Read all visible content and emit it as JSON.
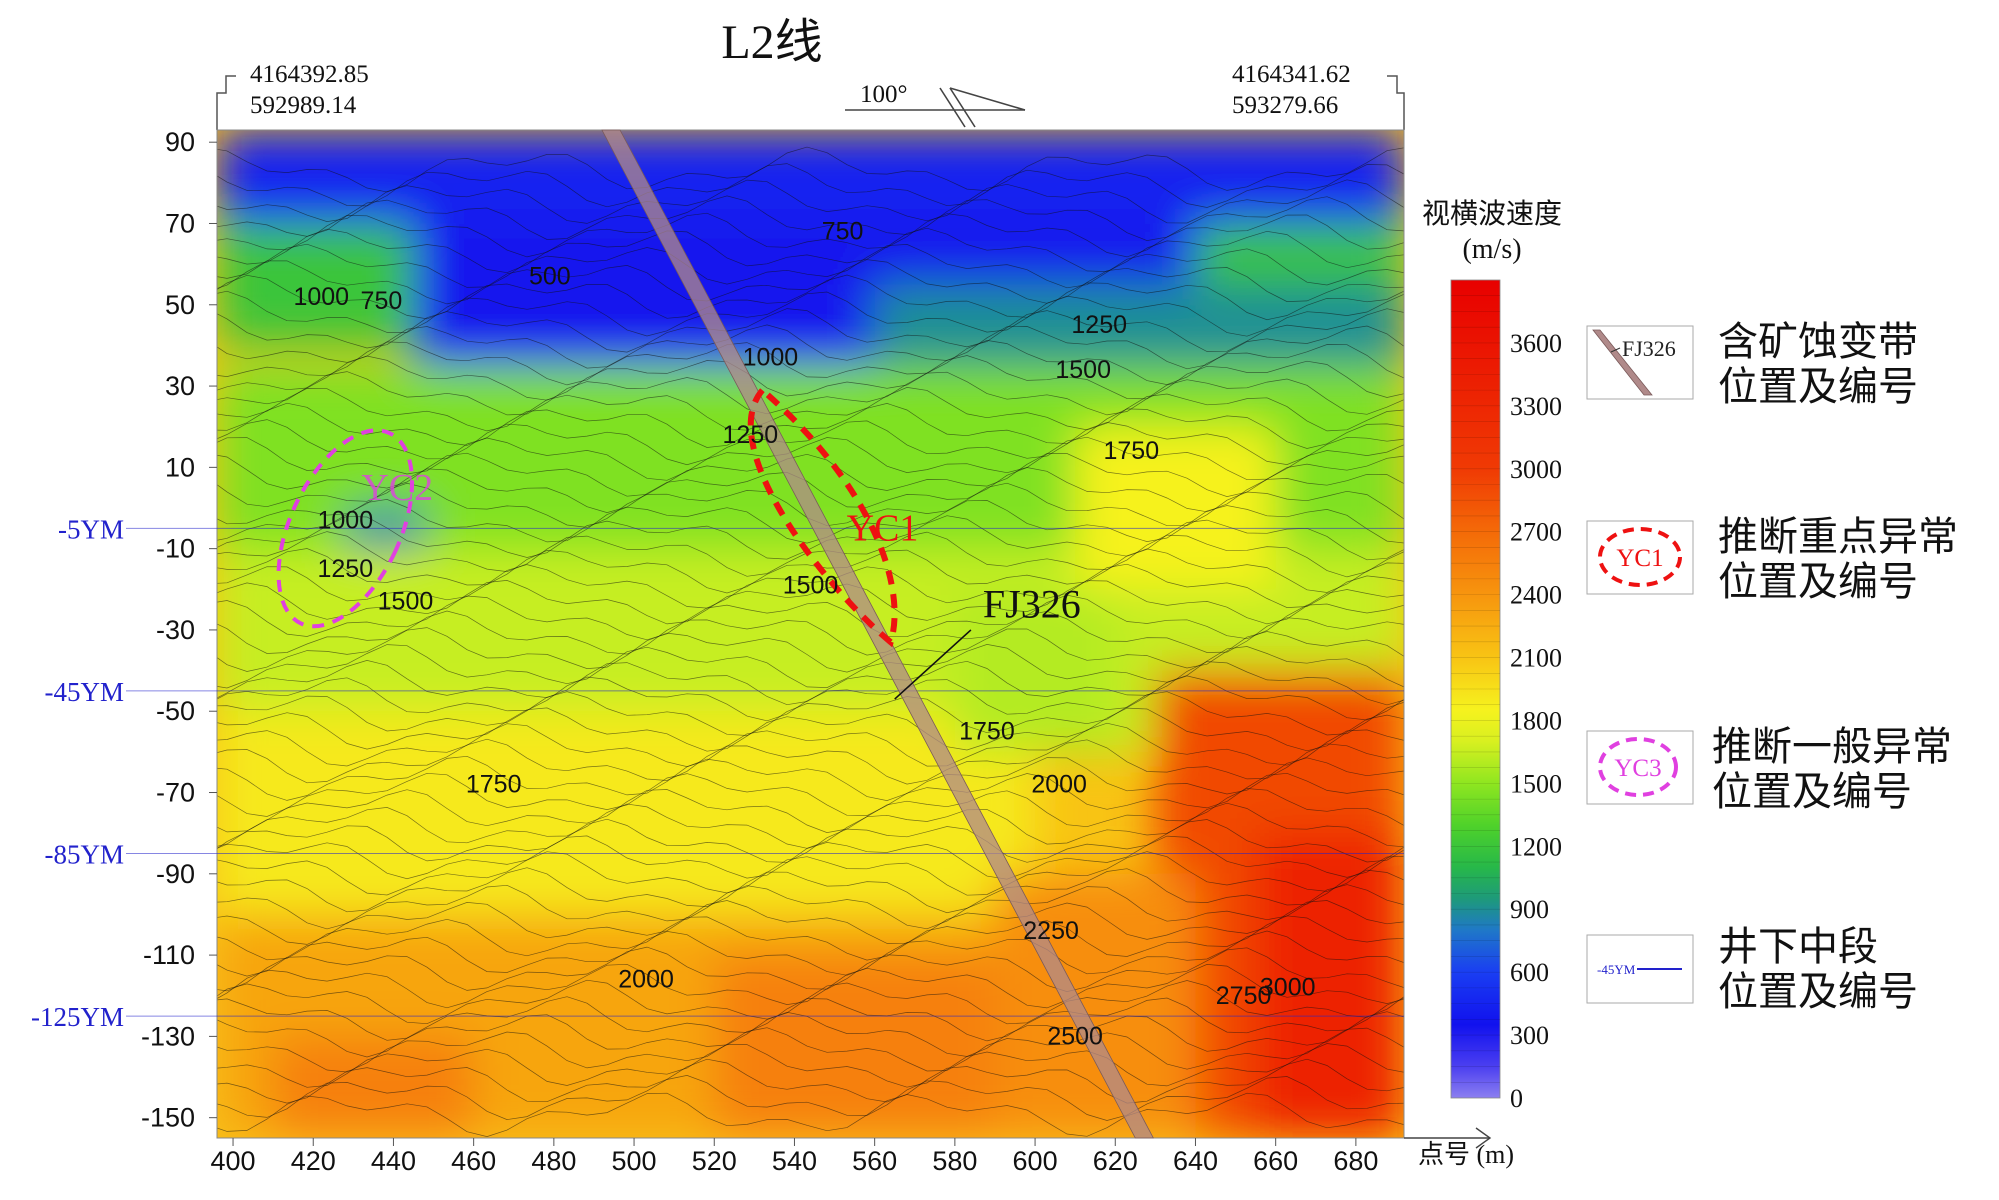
{
  "chart_data": {
    "type": "heatmap",
    "title": "L2线",
    "xlabel": "点号 (m)",
    "ylabel": "",
    "xlim": [
      396,
      692
    ],
    "ylim": [
      -155,
      93
    ],
    "x_ticks": [
      400,
      420,
      440,
      460,
      480,
      500,
      520,
      540,
      560,
      580,
      600,
      620,
      640,
      660,
      680
    ],
    "y_ticks": [
      90,
      70,
      50,
      30,
      10,
      -10,
      -30,
      -50,
      -70,
      -90,
      -110,
      -130,
      -150
    ],
    "corner_coords": {
      "left": [
        "4164392.85",
        "592989.14"
      ],
      "right": [
        "4164341.62",
        "593279.66"
      ]
    },
    "azimuth": "100°",
    "colorbar": {
      "title": "视横波速度",
      "unit": "(m/s)",
      "min": 0,
      "max": 3900,
      "ticks": [
        3600,
        3300,
        3000,
        2700,
        2400,
        2100,
        1800,
        1500,
        1200,
        900,
        600,
        300,
        0
      ],
      "stops": [
        {
          "v": 0,
          "c": "#8c7ff0"
        },
        {
          "v": 150,
          "c": "#4b3ff0"
        },
        {
          "v": 350,
          "c": "#1111ee"
        },
        {
          "v": 600,
          "c": "#1a3ef2"
        },
        {
          "v": 800,
          "c": "#1f78c8"
        },
        {
          "v": 950,
          "c": "#1e9a7a"
        },
        {
          "v": 1100,
          "c": "#27b849"
        },
        {
          "v": 1300,
          "c": "#4fd22a"
        },
        {
          "v": 1500,
          "c": "#8fe620"
        },
        {
          "v": 1700,
          "c": "#d8f020"
        },
        {
          "v": 1850,
          "c": "#f6f21e"
        },
        {
          "v": 2100,
          "c": "#f8c414"
        },
        {
          "v": 2400,
          "c": "#f7950e"
        },
        {
          "v": 2700,
          "c": "#f46a08"
        },
        {
          "v": 3000,
          "c": "#f03a04"
        },
        {
          "v": 3900,
          "c": "#e80000"
        }
      ]
    },
    "contour_labels": [
      {
        "v": "1000",
        "x": 422,
        "y": 50
      },
      {
        "v": "750",
        "x": 437,
        "y": 49
      },
      {
        "v": "500",
        "x": 479,
        "y": 55
      },
      {
        "v": "750",
        "x": 552,
        "y": 66
      },
      {
        "v": "1250",
        "x": 616,
        "y": 43
      },
      {
        "v": "1500",
        "x": 612,
        "y": 32
      },
      {
        "v": "1000",
        "x": 534,
        "y": 35
      },
      {
        "v": "1250",
        "x": 529,
        "y": 16
      },
      {
        "v": "1750",
        "x": 624,
        "y": 12
      },
      {
        "v": "1000",
        "x": 428,
        "y": -5
      },
      {
        "v": "1250",
        "x": 428,
        "y": -17
      },
      {
        "v": "1500",
        "x": 443,
        "y": -25
      },
      {
        "v": "1500",
        "x": 544,
        "y": -21
      },
      {
        "v": "1750",
        "x": 588,
        "y": -57
      },
      {
        "v": "1750",
        "x": 465,
        "y": -70
      },
      {
        "v": "2000",
        "x": 606,
        "y": -70
      },
      {
        "v": "2250",
        "x": 604,
        "y": -106
      },
      {
        "v": "2000",
        "x": 503,
        "y": -118
      },
      {
        "v": "2500",
        "x": 610,
        "y": -132
      },
      {
        "v": "2750",
        "x": 652,
        "y": -122
      },
      {
        "v": "3000",
        "x": 663,
        "y": -120
      }
    ],
    "levels": [
      {
        "name": "-5YM",
        "y": -5
      },
      {
        "name": "-45YM",
        "y": -45
      },
      {
        "name": "-85YM",
        "y": -85
      },
      {
        "name": "-125YM",
        "y": -125
      }
    ],
    "fault": {
      "name": "FJ326",
      "top": [
        492,
        93
      ],
      "bottom": [
        625,
        -155
      ]
    },
    "anomalies": [
      {
        "name": "YC1",
        "type": "key",
        "cx": 549,
        "cy": 0,
        "color": "#ee1111"
      },
      {
        "name": "YC2",
        "type": "general",
        "cx": 428,
        "cy": -5,
        "color": "#e040e0"
      }
    ]
  },
  "legend": {
    "fault": {
      "sample": "FJ326",
      "line1": "含矿蚀变带",
      "line2": "位置及编号"
    },
    "key_anomaly": {
      "sample": "YC1",
      "line1": "推断重点异常",
      "line2": "位置及编号"
    },
    "general_anomaly": {
      "sample": "YC3",
      "line1": "推断一般异常",
      "line2": "位置及编号"
    },
    "level": {
      "sample": "-45YM",
      "line1": "井下中段",
      "line2": "位置及编号"
    }
  },
  "colors": {
    "fault_fill": "#b08a8a",
    "key_anomaly": "#ee1111",
    "general_anomaly": "#e040e0",
    "level_line": "#2222cc"
  }
}
